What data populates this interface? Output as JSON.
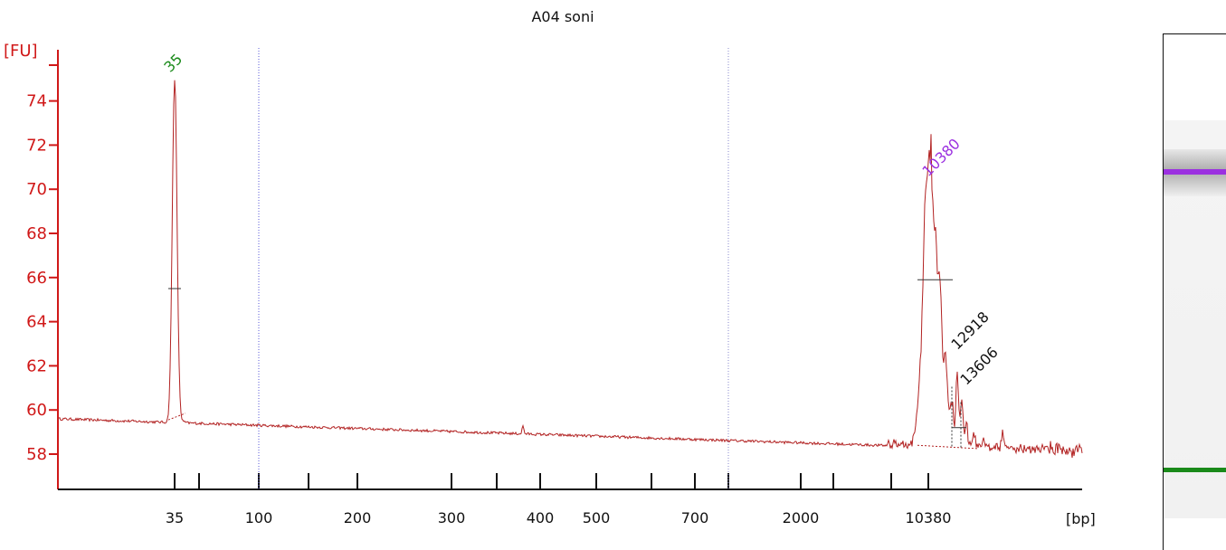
{
  "chart_data": {
    "type": "line",
    "title": "A04 soni",
    "ylabel": "[FU]",
    "xlabel": "[bp]",
    "ylim": [
      56.5,
      76
    ],
    "yticks": [
      58,
      60,
      62,
      64,
      66,
      68,
      70,
      72,
      74
    ],
    "x_scale": "non-linear (electropherogram size ladder)",
    "xtick_labels": [
      "35",
      "100",
      "200",
      "300",
      "400",
      "500",
      "700",
      "2000",
      "10380"
    ],
    "vertical_reference_lines": [
      "100",
      "2000"
    ],
    "peaks": [
      {
        "label": "35",
        "size_bp": 35,
        "fu": 75.0,
        "color": "#1a8a1a"
      },
      {
        "label": "10380",
        "size_bp": 10380,
        "fu": 70.2,
        "color": "#9b30e0"
      },
      {
        "label": "12918",
        "size_bp": 12918,
        "fu": 61.6,
        "color": "#111111"
      },
      {
        "label": "13606",
        "size_bp": 13606,
        "fu": 60.8,
        "color": "#111111"
      }
    ],
    "baseline": {
      "start_fu": 59.6,
      "end_fu": 58.1
    },
    "grid": false,
    "legend": "none"
  },
  "gel": {
    "upper_marker_color": "#9b30e0",
    "lower_marker_color": "#1a8a1a"
  }
}
